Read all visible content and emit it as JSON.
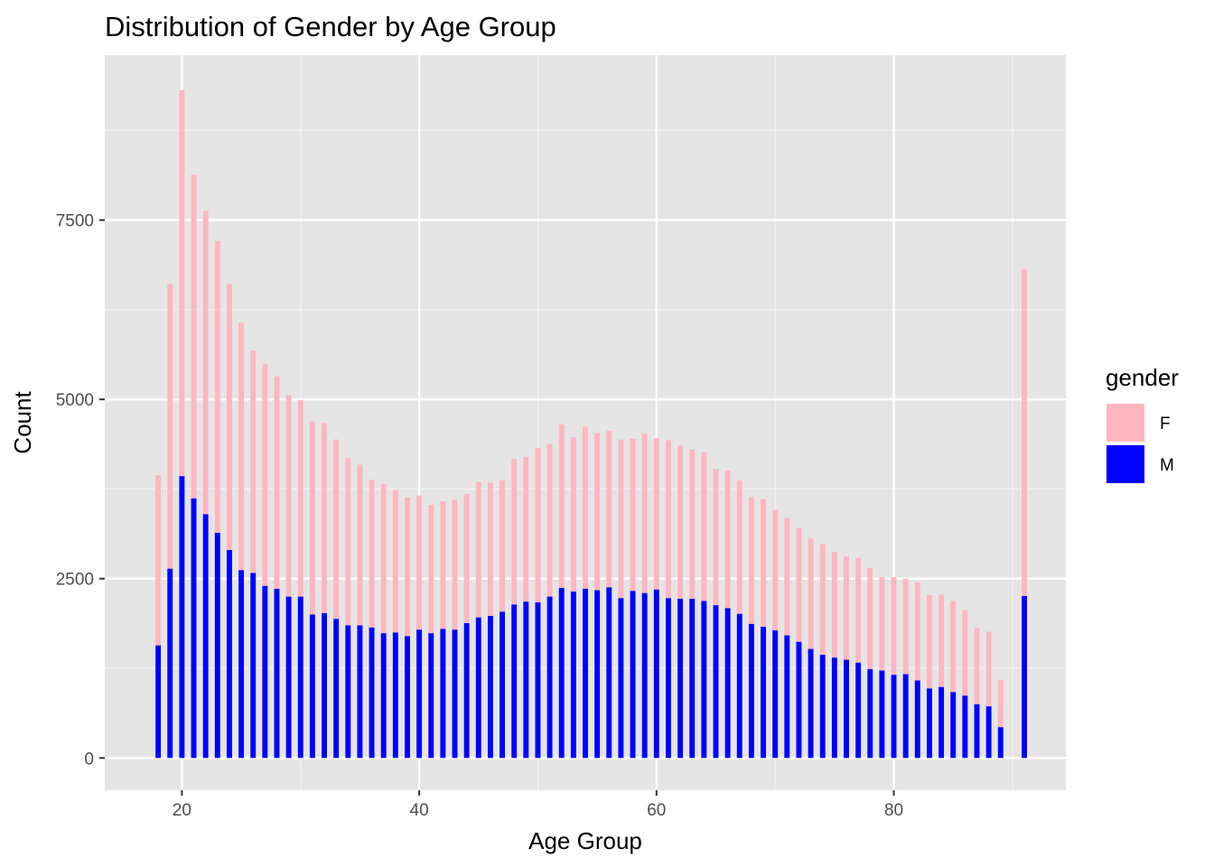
{
  "chart_data": {
    "type": "bar",
    "stacked": true,
    "title": "Distribution of Gender by Age Group",
    "xlabel": "Age Group",
    "ylabel": "Count",
    "xlim": [
      13.5,
      94.5
    ],
    "ylim": [
      -450,
      9800
    ],
    "x_ticks": [
      20,
      40,
      60,
      80
    ],
    "y_ticks": [
      0,
      2500,
      5000,
      7500
    ],
    "grid": true,
    "legend": {
      "title": "gender",
      "position": "right",
      "entries": [
        {
          "label": "F",
          "color": "#ffb6c1"
        },
        {
          "label": "M",
          "color": "#0000ff"
        }
      ]
    },
    "x": [
      18,
      19,
      20,
      21,
      22,
      23,
      24,
      25,
      26,
      27,
      28,
      29,
      30,
      31,
      32,
      33,
      34,
      35,
      36,
      37,
      38,
      39,
      40,
      41,
      42,
      43,
      44,
      45,
      46,
      47,
      48,
      49,
      50,
      51,
      52,
      53,
      54,
      55,
      56,
      57,
      58,
      59,
      60,
      61,
      62,
      63,
      64,
      65,
      66,
      67,
      68,
      69,
      70,
      71,
      72,
      73,
      74,
      75,
      76,
      77,
      78,
      79,
      80,
      81,
      82,
      83,
      84,
      85,
      86,
      87,
      88,
      89,
      91
    ],
    "series": [
      {
        "name": "M",
        "color": "#0000ff",
        "values": [
          1570,
          2640,
          3930,
          3620,
          3400,
          3140,
          2900,
          2620,
          2580,
          2400,
          2360,
          2250,
          2250,
          2000,
          2020,
          1940,
          1850,
          1850,
          1820,
          1740,
          1750,
          1700,
          1790,
          1740,
          1800,
          1790,
          1880,
          1960,
          1980,
          2040,
          2140,
          2180,
          2170,
          2250,
          2370,
          2320,
          2360,
          2340,
          2380,
          2230,
          2330,
          2300,
          2350,
          2230,
          2220,
          2220,
          2190,
          2130,
          2090,
          2010,
          1870,
          1830,
          1780,
          1710,
          1620,
          1520,
          1440,
          1400,
          1370,
          1330,
          1240,
          1220,
          1160,
          1170,
          1080,
          970,
          990,
          920,
          870,
          750,
          720,
          430,
          2260
        ]
      },
      {
        "name": "F",
        "color": "#ffb6c1",
        "values": [
          2370,
          3970,
          5380,
          4510,
          4230,
          4070,
          3710,
          3450,
          3100,
          3090,
          2960,
          2810,
          2740,
          2700,
          2650,
          2500,
          2330,
          2240,
          2060,
          2080,
          1990,
          1930,
          1870,
          1790,
          1780,
          1810,
          1800,
          1890,
          1860,
          1830,
          2030,
          2020,
          2150,
          2130,
          2280,
          2150,
          2260,
          2190,
          2180,
          2210,
          2120,
          2220,
          2110,
          2200,
          2140,
          2080,
          2070,
          1900,
          1920,
          1860,
          1770,
          1780,
          1680,
          1640,
          1580,
          1540,
          1540,
          1470,
          1440,
          1460,
          1410,
          1300,
          1360,
          1330,
          1370,
          1300,
          1290,
          1270,
          1190,
          1060,
          1040,
          660,
          4560
        ]
      }
    ]
  }
}
